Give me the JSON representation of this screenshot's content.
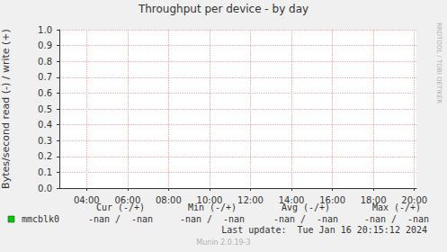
{
  "chart_data": {
    "type": "line",
    "title": "Throughput per device - by day",
    "y_label": "Bytes/second read (-) / write (+)",
    "side_text": "RRDTOOL / TOBI OETIKER",
    "xlim": [
      2.67,
      20.1
    ],
    "xticks": [
      {
        "value": 4,
        "label": "04:00"
      },
      {
        "value": 6,
        "label": "06:00"
      },
      {
        "value": 8,
        "label": "08:00"
      },
      {
        "value": 10,
        "label": "10:00"
      },
      {
        "value": 12,
        "label": "12:00"
      },
      {
        "value": 14,
        "label": "14:00"
      },
      {
        "value": 16,
        "label": "16:00"
      },
      {
        "value": 18,
        "label": "18:00"
      },
      {
        "value": 20,
        "label": "20:00"
      }
    ],
    "ylim": [
      0,
      1
    ],
    "yticks": [
      {
        "value": 0,
        "label": "0.0"
      },
      {
        "value": 0.1,
        "label": "0.1"
      },
      {
        "value": 0.2,
        "label": "0.2"
      },
      {
        "value": 0.3,
        "label": "0.3"
      },
      {
        "value": 0.4,
        "label": "0.4"
      },
      {
        "value": 0.5,
        "label": "0.5"
      },
      {
        "value": 0.6,
        "label": "0.6"
      },
      {
        "value": 0.7,
        "label": "0.7"
      },
      {
        "value": 0.8,
        "label": "0.8"
      },
      {
        "value": 0.9,
        "label": "0.9"
      },
      {
        "value": 1,
        "label": "1.0"
      }
    ],
    "grid": true,
    "series": [
      {
        "name": "mmcblk0",
        "color": "#00cc00",
        "x": [],
        "values": [],
        "stats": [
          "-nan /  -nan",
          "-nan /  -nan",
          "-nan /  -nan",
          "-nan /  -nan"
        ]
      }
    ],
    "stats_headers": [
      "Cur (-/+)",
      "Min (-/+)",
      "Avg (-/+)",
      "Max (-/+)"
    ],
    "last_update": "Last update:  Tue Jan 16 20:15:12 2024",
    "footer": "Munin 2.0.19-3"
  }
}
